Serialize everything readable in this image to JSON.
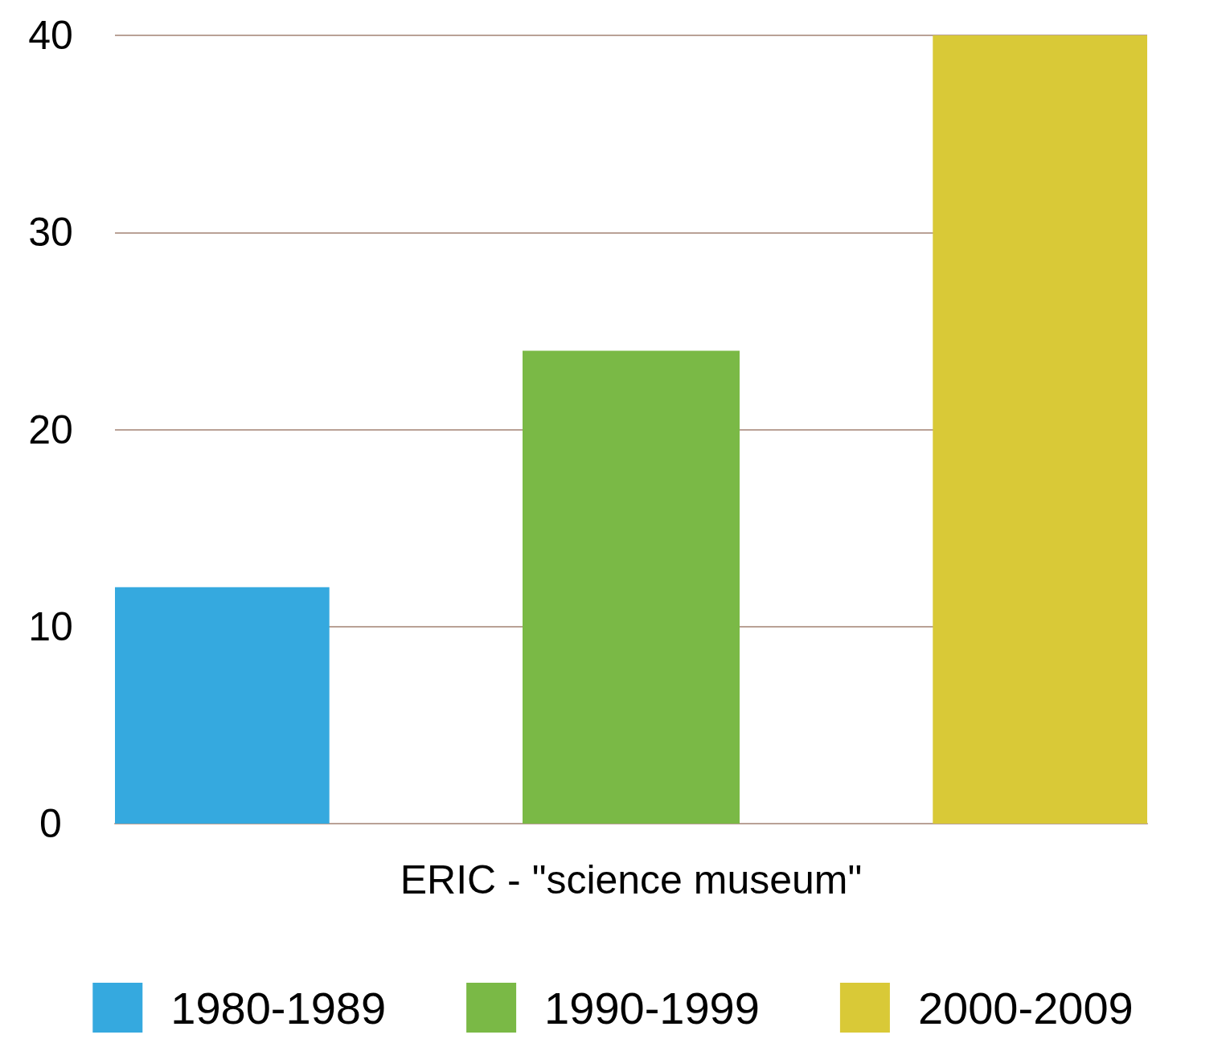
{
  "chart_data": {
    "type": "bar",
    "categories": [
      "ERIC - \"science museum\""
    ],
    "series": [
      {
        "name": "1980-1989",
        "color": "#35a9df",
        "values": [
          12
        ]
      },
      {
        "name": "1990-1999",
        "color": "#7ab946",
        "values": [
          24
        ]
      },
      {
        "name": "2000-2009",
        "color": "#d9c937",
        "values": [
          40
        ]
      }
    ],
    "ylim": [
      0,
      40
    ],
    "yticks": [
      0,
      10,
      20,
      30,
      40
    ],
    "grid": "y",
    "legend": "bottom"
  }
}
